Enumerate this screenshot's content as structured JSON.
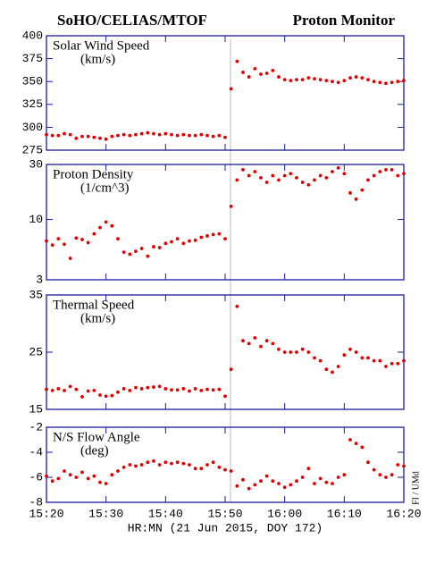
{
  "header": {
    "left": "SoHO/CELIAS/MTOF",
    "right": "Proton Monitor",
    "credit": "FI / UMd"
  },
  "chart_data": [
    {
      "type": "scatter",
      "title": "Solar Wind Speed",
      "subtitle": "(km/s)",
      "color": "#e00000",
      "x": [
        920,
        921,
        922,
        923,
        924,
        925,
        926,
        927,
        928,
        929,
        930,
        931,
        932,
        933,
        934,
        935,
        936,
        937,
        938,
        939,
        940,
        941,
        942,
        943,
        944,
        945,
        946,
        947,
        948,
        949,
        950,
        951,
        952,
        953,
        954,
        955,
        956,
        957,
        958,
        959,
        960,
        961,
        962,
        963,
        964,
        965,
        966,
        967,
        968,
        969,
        970,
        971,
        972,
        973,
        974,
        975,
        976,
        977,
        978,
        979,
        980
      ],
      "values": [
        292,
        291,
        291,
        293,
        292,
        288,
        290,
        290,
        289,
        288,
        287,
        290,
        291,
        292,
        291,
        292,
        293,
        294,
        293,
        292,
        293,
        292,
        291,
        292,
        291,
        291,
        292,
        291,
        290,
        291,
        289,
        342,
        372,
        360,
        355,
        364,
        358,
        359,
        362,
        355,
        352,
        351,
        352,
        352,
        354,
        353,
        352,
        351,
        350,
        349,
        351,
        354,
        355,
        354,
        352,
        350,
        349,
        348,
        349,
        350,
        351
      ],
      "xlim": [
        920,
        980
      ],
      "xticks": [
        920,
        930,
        940,
        950,
        960,
        970,
        980
      ],
      "ylim": [
        275,
        400
      ],
      "yticks": [
        275,
        300,
        325,
        350,
        375,
        400
      ]
    },
    {
      "type": "scatter",
      "title": "Proton Density",
      "subtitle": "(1/cm^3)",
      "color": "#e00000",
      "log": true,
      "x": [
        920,
        921,
        922,
        923,
        924,
        925,
        926,
        927,
        928,
        929,
        930,
        931,
        932,
        933,
        934,
        935,
        936,
        937,
        938,
        939,
        940,
        941,
        942,
        943,
        944,
        945,
        946,
        947,
        948,
        949,
        950,
        951,
        952,
        953,
        954,
        955,
        956,
        957,
        958,
        959,
        960,
        961,
        962,
        963,
        964,
        965,
        966,
        967,
        968,
        969,
        970,
        971,
        972,
        973,
        974,
        975,
        976,
        977,
        978,
        979,
        980
      ],
      "values": [
        6.5,
        6.0,
        6.8,
        6.1,
        4.6,
        6.9,
        6.7,
        6.3,
        7.5,
        8.5,
        9.5,
        8.8,
        6.8,
        5.2,
        5.0,
        5.3,
        5.6,
        4.8,
        5.8,
        5.7,
        6.2,
        6.4,
        6.8,
        6.2,
        6.5,
        6.6,
        7.0,
        7.2,
        7.4,
        7.5,
        6.8,
        13,
        22,
        27,
        24,
        26,
        23,
        21,
        24,
        22,
        24,
        25,
        23,
        21,
        20,
        22,
        24,
        23,
        26,
        28,
        25,
        17,
        15,
        18,
        22,
        24,
        26,
        27,
        27,
        24,
        25
      ],
      "xlim": [
        920,
        980
      ],
      "xticks": [
        920,
        930,
        940,
        950,
        960,
        970,
        980
      ],
      "ylim": [
        3,
        30
      ],
      "yticks": [
        3,
        10,
        30
      ]
    },
    {
      "type": "scatter",
      "title": "Thermal Speed",
      "subtitle": "(km/s)",
      "color": "#e00000",
      "x": [
        920,
        921,
        922,
        923,
        924,
        925,
        926,
        927,
        928,
        929,
        930,
        931,
        932,
        933,
        934,
        935,
        936,
        937,
        938,
        939,
        940,
        941,
        942,
        943,
        944,
        945,
        946,
        947,
        948,
        949,
        950,
        951,
        952,
        953,
        954,
        955,
        956,
        957,
        958,
        959,
        960,
        961,
        962,
        963,
        964,
        965,
        966,
        967,
        968,
        969,
        970,
        971,
        972,
        973,
        974,
        975,
        976,
        977,
        978,
        979,
        980
      ],
      "values": [
        18.5,
        18.3,
        18.6,
        18.3,
        19,
        18.5,
        17.2,
        18.2,
        18.3,
        17.5,
        17.3,
        17.4,
        18,
        18.6,
        18.3,
        18.8,
        18.6,
        18.8,
        18.9,
        19,
        18.6,
        18.4,
        18.4,
        18.6,
        18.2,
        18.6,
        18.3,
        18.5,
        18.4,
        18.5,
        17.3,
        22,
        33,
        27,
        26.5,
        27.5,
        26,
        27,
        26.5,
        25.5,
        25,
        25,
        25,
        25.5,
        25,
        24,
        23.5,
        22,
        21.5,
        22.5,
        24.5,
        25.5,
        25,
        24,
        24,
        23.5,
        23.5,
        22.5,
        23,
        23,
        23.5
      ],
      "xlim": [
        920,
        980
      ],
      "xticks": [
        920,
        930,
        940,
        950,
        960,
        970,
        980
      ],
      "ylim": [
        15,
        35
      ],
      "yticks": [
        15,
        25,
        35
      ]
    },
    {
      "type": "scatter",
      "title": "N/S Flow Angle",
      "subtitle": "(deg)",
      "color": "#e00000",
      "x": [
        920,
        921,
        922,
        923,
        924,
        925,
        926,
        927,
        928,
        929,
        930,
        931,
        932,
        933,
        934,
        935,
        936,
        937,
        938,
        939,
        940,
        941,
        942,
        943,
        944,
        945,
        946,
        947,
        948,
        949,
        950,
        951,
        952,
        953,
        954,
        955,
        956,
        957,
        958,
        959,
        960,
        961,
        962,
        963,
        964,
        965,
        966,
        967,
        968,
        969,
        970,
        971,
        972,
        973,
        974,
        975,
        976,
        977,
        978,
        979,
        980
      ],
      "values": [
        -5.9,
        -6.3,
        -6.1,
        -5.5,
        -5.8,
        -6.0,
        -5.6,
        -6.1,
        -5.9,
        -6.4,
        -6.5,
        -5.8,
        -5.5,
        -5.2,
        -5.0,
        -5.1,
        -5.0,
        -4.8,
        -4.7,
        -5.0,
        -4.8,
        -4.9,
        -4.8,
        -4.9,
        -5.0,
        -5.3,
        -5.3,
        -5.0,
        -4.8,
        -5.2,
        -5.4,
        -5.5,
        -6.7,
        -6.2,
        -6.9,
        -6.6,
        -6.3,
        -5.9,
        -6.3,
        -6.5,
        -6.8,
        -6.6,
        -6.3,
        -6.0,
        -5.3,
        -6.5,
        -6.1,
        -6.4,
        -6.5,
        -6.0,
        -5.8,
        -3.0,
        -3.3,
        -3.6,
        -4.8,
        -5.4,
        -5.8,
        -6.0,
        -5.8,
        -5.0,
        -5.1
      ],
      "xlim": [
        920,
        980
      ],
      "xticks": [
        {
          "value": 920,
          "label": "15:20"
        },
        {
          "value": 930,
          "label": "15:30"
        },
        {
          "value": 940,
          "label": "15:40"
        },
        {
          "value": 950,
          "label": "15:50"
        },
        {
          "value": 960,
          "label": "16:00"
        },
        {
          "value": 970,
          "label": "16:10"
        },
        {
          "value": 980,
          "label": "16:20"
        }
      ],
      "xlabel": "HR:MN (21 Jun 2015, DOY 172)",
      "ylim": [
        -8,
        -2
      ],
      "yticks": [
        -8,
        -6,
        -4,
        -2
      ]
    }
  ]
}
